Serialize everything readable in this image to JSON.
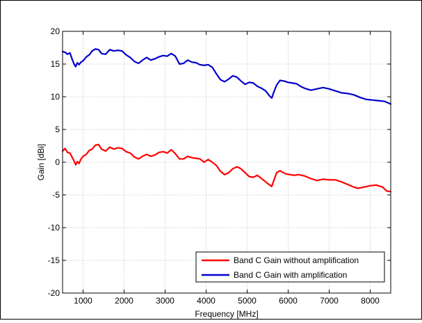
{
  "chart_data": {
    "type": "line",
    "title": "",
    "xlabel": "Frequency [MHz]",
    "ylabel": "Gain [dBi]",
    "xlim": [
      500,
      8500
    ],
    "ylim": [
      -20,
      20
    ],
    "xticks": [
      1000,
      2000,
      3000,
      4000,
      5000,
      6000,
      7000,
      8000
    ],
    "xtick_labels": [
      "1000",
      "2000",
      "3000",
      "4000",
      "5000",
      "6000",
      "7000",
      "8000"
    ],
    "yticks": [
      -20,
      -15,
      -10,
      -5,
      0,
      5,
      10,
      15,
      20
    ],
    "ytick_labels": [
      "-20",
      "-15",
      "-10",
      "-5",
      "0",
      "5",
      "10",
      "15",
      "20"
    ],
    "grid": true,
    "legend_position": "bottom-right",
    "series": [
      {
        "name": "Band C Gain without amplification",
        "color": "#ff0000",
        "points": [
          [
            500,
            1.7
          ],
          [
            560,
            2.1
          ],
          [
            620,
            1.5
          ],
          [
            680,
            1.4
          ],
          [
            730,
            0.8
          ],
          [
            780,
            0.2
          ],
          [
            820,
            -0.4
          ],
          [
            860,
            0.1
          ],
          [
            900,
            -0.2
          ],
          [
            950,
            0.5
          ],
          [
            1000,
            0.9
          ],
          [
            1080,
            1.2
          ],
          [
            1150,
            1.8
          ],
          [
            1220,
            2.0
          ],
          [
            1300,
            2.6
          ],
          [
            1380,
            2.7
          ],
          [
            1450,
            2.0
          ],
          [
            1550,
            1.7
          ],
          [
            1650,
            2.3
          ],
          [
            1750,
            2.0
          ],
          [
            1850,
            2.2
          ],
          [
            1950,
            2.1
          ],
          [
            2050,
            1.6
          ],
          [
            2150,
            1.4
          ],
          [
            2250,
            0.8
          ],
          [
            2350,
            0.5
          ],
          [
            2450,
            0.9
          ],
          [
            2550,
            1.2
          ],
          [
            2650,
            0.9
          ],
          [
            2750,
            1.1
          ],
          [
            2850,
            1.5
          ],
          [
            2950,
            1.6
          ],
          [
            3050,
            1.4
          ],
          [
            3150,
            1.9
          ],
          [
            3250,
            1.3
          ],
          [
            3350,
            0.5
          ],
          [
            3450,
            0.5
          ],
          [
            3550,
            0.9
          ],
          [
            3650,
            0.7
          ],
          [
            3750,
            0.6
          ],
          [
            3850,
            0.5
          ],
          [
            3950,
            0.0
          ],
          [
            4050,
            0.4
          ],
          [
            4150,
            0.0
          ],
          [
            4250,
            -0.5
          ],
          [
            4350,
            -1.4
          ],
          [
            4450,
            -1.9
          ],
          [
            4550,
            -1.6
          ],
          [
            4650,
            -1.0
          ],
          [
            4750,
            -0.7
          ],
          [
            4850,
            -1.0
          ],
          [
            4950,
            -1.6
          ],
          [
            5050,
            -2.2
          ],
          [
            5150,
            -2.3
          ],
          [
            5250,
            -2.0
          ],
          [
            5350,
            -2.5
          ],
          [
            5450,
            -3.0
          ],
          [
            5550,
            -3.5
          ],
          [
            5600,
            -3.7
          ],
          [
            5650,
            -2.8
          ],
          [
            5720,
            -1.6
          ],
          [
            5800,
            -1.3
          ],
          [
            5880,
            -1.6
          ],
          [
            5950,
            -1.8
          ],
          [
            6050,
            -1.9
          ],
          [
            6150,
            -2.0
          ],
          [
            6250,
            -1.9
          ],
          [
            6400,
            -2.1
          ],
          [
            6550,
            -2.5
          ],
          [
            6700,
            -2.8
          ],
          [
            6850,
            -2.6
          ],
          [
            7000,
            -2.7
          ],
          [
            7150,
            -2.7
          ],
          [
            7300,
            -3.0
          ],
          [
            7450,
            -3.4
          ],
          [
            7600,
            -3.8
          ],
          [
            7700,
            -4.0
          ],
          [
            7850,
            -3.8
          ],
          [
            8000,
            -3.6
          ],
          [
            8150,
            -3.5
          ],
          [
            8300,
            -3.8
          ],
          [
            8400,
            -4.4
          ],
          [
            8500,
            -4.5
          ]
        ]
      },
      {
        "name": "Band C Gain with amplification",
        "color": "#0000cc",
        "points": [
          [
            500,
            16.9
          ],
          [
            560,
            16.8
          ],
          [
            620,
            16.5
          ],
          [
            680,
            16.7
          ],
          [
            730,
            15.8
          ],
          [
            780,
            15.0
          ],
          [
            820,
            14.6
          ],
          [
            860,
            15.2
          ],
          [
            900,
            14.9
          ],
          [
            950,
            15.3
          ],
          [
            1000,
            15.5
          ],
          [
            1080,
            16.1
          ],
          [
            1150,
            16.4
          ],
          [
            1220,
            17.0
          ],
          [
            1300,
            17.3
          ],
          [
            1380,
            17.2
          ],
          [
            1450,
            16.6
          ],
          [
            1550,
            16.5
          ],
          [
            1650,
            17.2
          ],
          [
            1750,
            17.0
          ],
          [
            1850,
            17.1
          ],
          [
            1950,
            17.0
          ],
          [
            2050,
            16.4
          ],
          [
            2150,
            16.0
          ],
          [
            2250,
            15.4
          ],
          [
            2350,
            15.1
          ],
          [
            2450,
            15.6
          ],
          [
            2550,
            16.0
          ],
          [
            2650,
            15.6
          ],
          [
            2750,
            15.8
          ],
          [
            2850,
            16.1
          ],
          [
            2950,
            16.3
          ],
          [
            3050,
            16.2
          ],
          [
            3150,
            16.6
          ],
          [
            3250,
            16.2
          ],
          [
            3350,
            15.0
          ],
          [
            3450,
            15.1
          ],
          [
            3550,
            15.6
          ],
          [
            3650,
            15.3
          ],
          [
            3750,
            15.2
          ],
          [
            3850,
            14.9
          ],
          [
            3950,
            14.8
          ],
          [
            4050,
            14.9
          ],
          [
            4150,
            14.5
          ],
          [
            4250,
            13.5
          ],
          [
            4350,
            12.6
          ],
          [
            4450,
            12.3
          ],
          [
            4550,
            12.7
          ],
          [
            4650,
            13.2
          ],
          [
            4750,
            13.0
          ],
          [
            4850,
            12.4
          ],
          [
            4950,
            11.9
          ],
          [
            5050,
            12.2
          ],
          [
            5150,
            12.1
          ],
          [
            5250,
            11.6
          ],
          [
            5350,
            11.3
          ],
          [
            5450,
            10.9
          ],
          [
            5550,
            10.1
          ],
          [
            5600,
            9.8
          ],
          [
            5650,
            10.7
          ],
          [
            5720,
            11.8
          ],
          [
            5800,
            12.5
          ],
          [
            5900,
            12.4
          ],
          [
            6000,
            12.2
          ],
          [
            6100,
            12.1
          ],
          [
            6200,
            12.0
          ],
          [
            6300,
            11.6
          ],
          [
            6400,
            11.3
          ],
          [
            6550,
            11.0
          ],
          [
            6700,
            11.2
          ],
          [
            6850,
            11.4
          ],
          [
            7000,
            11.2
          ],
          [
            7150,
            10.9
          ],
          [
            7300,
            10.6
          ],
          [
            7450,
            10.5
          ],
          [
            7600,
            10.3
          ],
          [
            7750,
            9.9
          ],
          [
            7900,
            9.6
          ],
          [
            8050,
            9.5
          ],
          [
            8200,
            9.4
          ],
          [
            8350,
            9.3
          ],
          [
            8500,
            8.9
          ]
        ]
      }
    ]
  }
}
